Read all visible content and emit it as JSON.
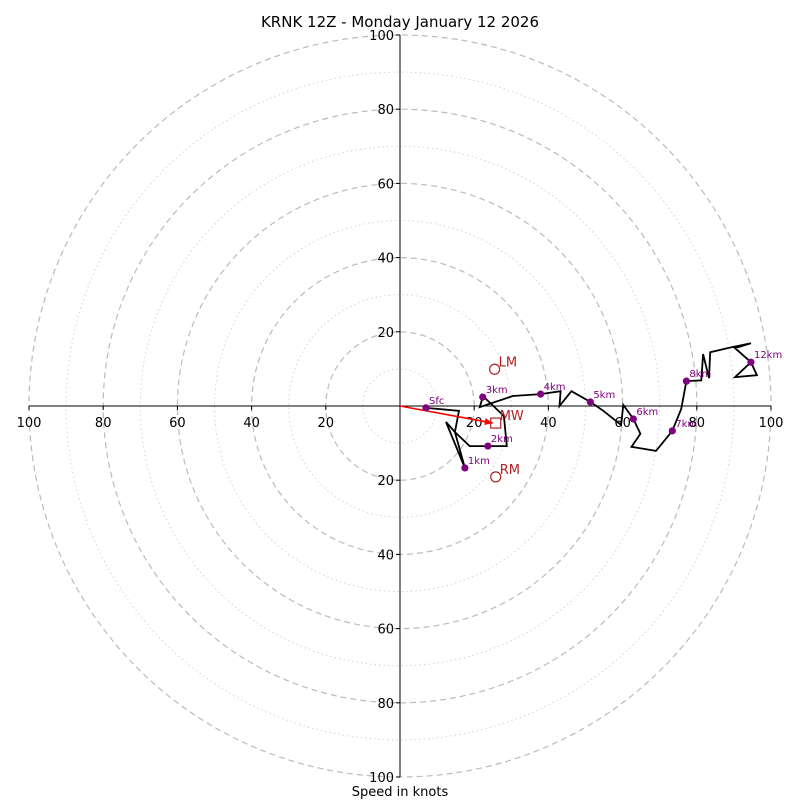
{
  "chart_data": {
    "type": "line",
    "subtype": "hodograph",
    "title": "KRNK 12Z - Monday January 12 2026",
    "xlabel": "Speed in knots",
    "ylabel": "",
    "xlim": [
      -100,
      100
    ],
    "ylim": [
      -100,
      100
    ],
    "tick_labels": [
      "20",
      "40",
      "60",
      "80",
      "100"
    ],
    "ticks": [
      20,
      40,
      60,
      80,
      100
    ],
    "rings": {
      "major": [
        20,
        40,
        60,
        80,
        100
      ],
      "minor": [
        10,
        30,
        50,
        70,
        90
      ]
    },
    "grid": true,
    "colors": {
      "trace": "#000000",
      "height_markers": "#800080",
      "storm_motion": "#b22222",
      "shear_vector": "#ff0000",
      "major_ring": "#bbbbbb",
      "minor_ring": "#d3d3d3"
    },
    "trace": [
      [
        7.0,
        -0.5
      ],
      [
        15.9,
        -1.3
      ],
      [
        14.8,
        -7.0
      ],
      [
        12.4,
        -4.3
      ],
      [
        17.5,
        -16.7
      ],
      [
        14.8,
        -7.0
      ],
      [
        18.8,
        -10.8
      ],
      [
        23.7,
        -10.8
      ],
      [
        28.8,
        -10.8
      ],
      [
        28.0,
        -2.7
      ],
      [
        21.8,
        3.2
      ],
      [
        22.3,
        2.4
      ],
      [
        21.5,
        -0.3
      ],
      [
        30.4,
        2.7
      ],
      [
        37.9,
        3.2
      ],
      [
        43.3,
        4.0
      ],
      [
        43.0,
        0.0
      ],
      [
        46.2,
        4.0
      ],
      [
        51.3,
        1.1
      ],
      [
        54.8,
        -1.3
      ],
      [
        59.6,
        -5.1
      ],
      [
        60.2,
        0.3
      ],
      [
        62.9,
        -3.5
      ],
      [
        64.8,
        -7.5
      ],
      [
        62.4,
        -11.0
      ],
      [
        69.0,
        -12.1
      ],
      [
        73.4,
        -6.7
      ],
      [
        75.8,
        -0.8
      ],
      [
        77.2,
        6.7
      ],
      [
        81.2,
        6.9
      ],
      [
        81.7,
        14.0
      ],
      [
        83.3,
        7.5
      ],
      [
        83.6,
        14.5
      ],
      [
        89.2,
        15.8
      ],
      [
        94.6,
        16.9
      ],
      [
        90.3,
        15.6
      ],
      [
        94.6,
        11.8
      ],
      [
        96.2,
        8.3
      ],
      [
        90.3,
        7.8
      ],
      [
        94.6,
        11.8
      ]
    ],
    "height_markers": [
      {
        "label": "Sfc",
        "u": 7.0,
        "v": -0.5
      },
      {
        "label": "1km",
        "u": 17.5,
        "v": -16.7
      },
      {
        "label": "2km",
        "u": 23.7,
        "v": -10.8
      },
      {
        "label": "3km",
        "u": 22.3,
        "v": 2.4
      },
      {
        "label": "4km",
        "u": 37.9,
        "v": 3.2
      },
      {
        "label": "5km",
        "u": 51.3,
        "v": 1.1
      },
      {
        "label": "6km",
        "u": 62.9,
        "v": -3.5
      },
      {
        "label": "7km",
        "u": 73.4,
        "v": -6.7
      },
      {
        "label": "8km",
        "u": 77.2,
        "v": 6.7
      },
      {
        "label": "12km",
        "u": 94.6,
        "v": 11.8
      }
    ],
    "storm_motion": [
      {
        "label": "LM",
        "u": 25.5,
        "v": 9.9,
        "marker": "circle"
      },
      {
        "label": "MW",
        "u": 25.8,
        "v": -4.6,
        "marker": "square"
      },
      {
        "label": "RM",
        "u": 25.8,
        "v": -19.1,
        "marker": "circle"
      }
    ],
    "shear_vector": {
      "from": [
        0,
        0
      ],
      "to": [
        25.0,
        -4.6
      ]
    }
  }
}
